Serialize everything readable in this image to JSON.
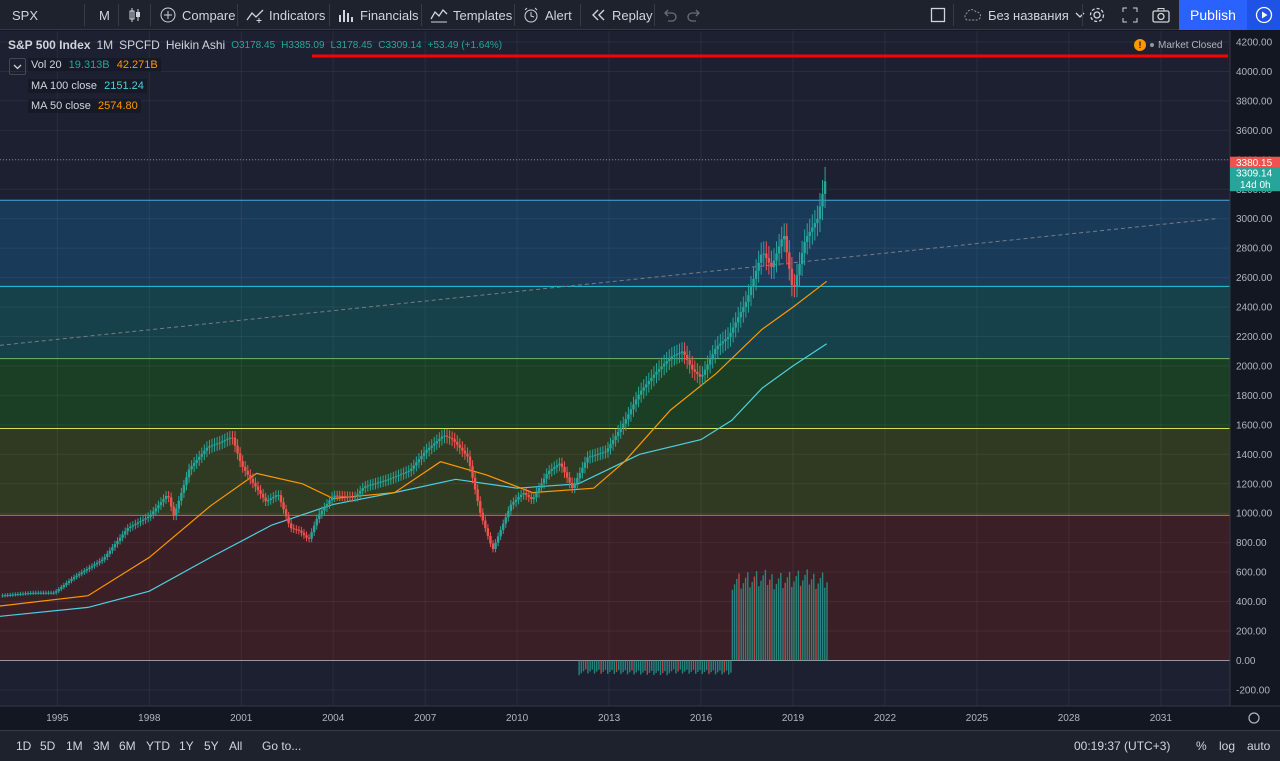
{
  "toolbar": {
    "symbol": "SPX",
    "interval": "M",
    "compare": "Compare",
    "indicators": "Indicators",
    "financials": "Financials",
    "templates": "Templates",
    "alert": "Alert",
    "replay": "Replay",
    "layout_name": "Без названия",
    "publish": "Publish"
  },
  "legend": {
    "title": "S&P 500 Index",
    "interval": "1M",
    "exchange": "SPCFD",
    "chart_type": "Heikin Ashi",
    "open": "O3178.45",
    "high": "H3385.09",
    "low": "L3178.45",
    "close": "C3309.14",
    "change": "+53.49 (+1.64%)",
    "market_status": "Market Closed"
  },
  "indicators": [
    {
      "name": "Vol 20",
      "value1": "19.313B",
      "value2": "42.271B",
      "color1": "#26a69a",
      "color2": "#ff9800"
    },
    {
      "name": "MA 100 close",
      "value1": "2151.24",
      "color1": "#4dd0e1"
    },
    {
      "name": "MA 50 close",
      "value1": "2574.80",
      "color1": "#ff9800"
    }
  ],
  "price_badges": {
    "high": "3380.15",
    "last": "3309.14",
    "countdown": "14d 0h"
  },
  "bottom": {
    "ranges": [
      "1D",
      "5D",
      "1M",
      "3M",
      "6M",
      "YTD",
      "1Y",
      "5Y",
      "All"
    ],
    "goto": "Go to...",
    "time": "00:19:37 (UTC+3)",
    "percent": "%",
    "log": "log",
    "auto": "auto"
  },
  "colors": {
    "up": "#26a69a",
    "down": "#ef5350",
    "accent": "#2962ff",
    "ma100": "#4dd0e1",
    "ma50": "#ff9800",
    "hline": "#ff0000"
  },
  "chart_data": {
    "type": "candlestick",
    "y_ticks": [
      4200,
      4000,
      3800,
      3600,
      3400,
      3200,
      3000,
      2800,
      2600,
      2400,
      2200,
      2000,
      1800,
      1600,
      1400,
      1200,
      1000,
      800,
      600,
      400,
      200,
      0,
      -200
    ],
    "y_tick_labels": [
      "4200.00",
      "4000.00",
      "3800.00",
      "3600.00",
      "3400.00",
      "3200.00",
      "3000.00",
      "2800.00",
      "2600.00",
      "2400.00",
      "2200.00",
      "2000.00",
      "1800.00",
      "1600.00",
      "1400.00",
      "1200.00",
      "1000.00",
      "800.00",
      "600.00",
      "400.00",
      "200.00",
      "0.00",
      "-200.00"
    ],
    "x_ticks": [
      1995,
      1998,
      2001,
      2004,
      2007,
      2010,
      2013,
      2016,
      2019,
      2022,
      2025,
      2028,
      2031
    ],
    "ylim": [
      -290,
      4300
    ],
    "xlim": [
      1993.13,
      2032.8
    ],
    "price_path": [
      [
        1993.13,
        440
      ],
      [
        1994.2,
        460
      ],
      [
        1994.9,
        460
      ],
      [
        1995.5,
        560
      ],
      [
        1996.5,
        690
      ],
      [
        1997.3,
        900
      ],
      [
        1998.0,
        980
      ],
      [
        1998.6,
        1130
      ],
      [
        1998.8,
        980
      ],
      [
        1999.3,
        1300
      ],
      [
        1999.9,
        1450
      ],
      [
        2000.3,
        1480
      ],
      [
        2000.7,
        1520
      ],
      [
        2001.0,
        1330
      ],
      [
        2001.4,
        1200
      ],
      [
        2001.8,
        1080
      ],
      [
        2002.2,
        1130
      ],
      [
        2002.6,
        900
      ],
      [
        2002.9,
        880
      ],
      [
        2003.2,
        820
      ],
      [
        2003.5,
        980
      ],
      [
        2004.0,
        1120
      ],
      [
        2004.7,
        1110
      ],
      [
        2005.0,
        1180
      ],
      [
        2005.8,
        1230
      ],
      [
        2006.5,
        1290
      ],
      [
        2007.0,
        1420
      ],
      [
        2007.6,
        1530
      ],
      [
        2007.9,
        1500
      ],
      [
        2008.4,
        1380
      ],
      [
        2008.8,
        1000
      ],
      [
        2009.2,
        750
      ],
      [
        2009.8,
        1060
      ],
      [
        2010.2,
        1140
      ],
      [
        2010.5,
        1090
      ],
      [
        2011.0,
        1280
      ],
      [
        2011.4,
        1340
      ],
      [
        2011.8,
        1170
      ],
      [
        2012.3,
        1380
      ],
      [
        2012.9,
        1420
      ],
      [
        2013.5,
        1620
      ],
      [
        2014.0,
        1820
      ],
      [
        2014.5,
        1950
      ],
      [
        2015.0,
        2060
      ],
      [
        2015.4,
        2100
      ],
      [
        2015.7,
        1980
      ],
      [
        2016.0,
        1920
      ],
      [
        2016.5,
        2130
      ],
      [
        2016.9,
        2200
      ],
      [
        2017.5,
        2450
      ],
      [
        2018.0,
        2780
      ],
      [
        2018.3,
        2670
      ],
      [
        2018.7,
        2900
      ],
      [
        2019.0,
        2500
      ],
      [
        2019.4,
        2860
      ],
      [
        2019.8,
        3000
      ],
      [
        2020.1,
        3309
      ]
    ],
    "ma100_path": [
      [
        1993.13,
        300
      ],
      [
        1996.0,
        360
      ],
      [
        1998.0,
        470
      ],
      [
        2000.0,
        700
      ],
      [
        2002.0,
        920
      ],
      [
        2004.0,
        1060
      ],
      [
        2006.0,
        1140
      ],
      [
        2008.0,
        1230
      ],
      [
        2010.0,
        1170
      ],
      [
        2012.0,
        1200
      ],
      [
        2014.0,
        1400
      ],
      [
        2016.0,
        1500
      ],
      [
        2017.0,
        1630
      ],
      [
        2018.0,
        1850
      ],
      [
        2019.0,
        2000
      ],
      [
        2020.1,
        2151
      ]
    ],
    "ma50_path": [
      [
        1993.13,
        370
      ],
      [
        1996.0,
        440
      ],
      [
        1998.0,
        700
      ],
      [
        2000.0,
        1050
      ],
      [
        2001.5,
        1270
      ],
      [
        2003.0,
        1200
      ],
      [
        2004.0,
        1100
      ],
      [
        2006.0,
        1140
      ],
      [
        2007.5,
        1350
      ],
      [
        2009.0,
        1260
      ],
      [
        2010.5,
        1140
      ],
      [
        2012.5,
        1170
      ],
      [
        2013.5,
        1350
      ],
      [
        2015.0,
        1700
      ],
      [
        2016.5,
        1950
      ],
      [
        2018.0,
        2250
      ],
      [
        2019.0,
        2400
      ],
      [
        2020.1,
        2575
      ]
    ],
    "zones": [
      {
        "from": 2540,
        "to": 3125,
        "color": "#1a3a5a"
      },
      {
        "from": 2050,
        "to": 2540,
        "color": "#16404a"
      },
      {
        "from": 1575,
        "to": 2050,
        "color": "#1a3f24"
      },
      {
        "from": 985,
        "to": 1575,
        "color": "#303a22"
      },
      {
        "from": 0,
        "to": 985,
        "color": "#3a1f26"
      }
    ],
    "hlines": [
      {
        "y": 3125,
        "color": "#4aa3df"
      },
      {
        "y": 2540,
        "color": "#26c6da"
      },
      {
        "y": 2050,
        "color": "#66bb6a"
      },
      {
        "y": 1575,
        "color": "#d4e157"
      },
      {
        "y": 985,
        "color": "#ef5350"
      },
      {
        "y": 0,
        "color": "#9598a1"
      }
    ],
    "trendline": [
      [
        1993.13,
        2140
      ],
      [
        2032.8,
        3000
      ]
    ],
    "volume_bars": [
      {
        "from": 2012.0,
        "to": 2017.0,
        "value": -100
      },
      {
        "from": 2017.0,
        "to": 2020.1,
        "value": 520
      }
    ],
    "high_value": 3380.15,
    "last_value": 3309.14
  }
}
